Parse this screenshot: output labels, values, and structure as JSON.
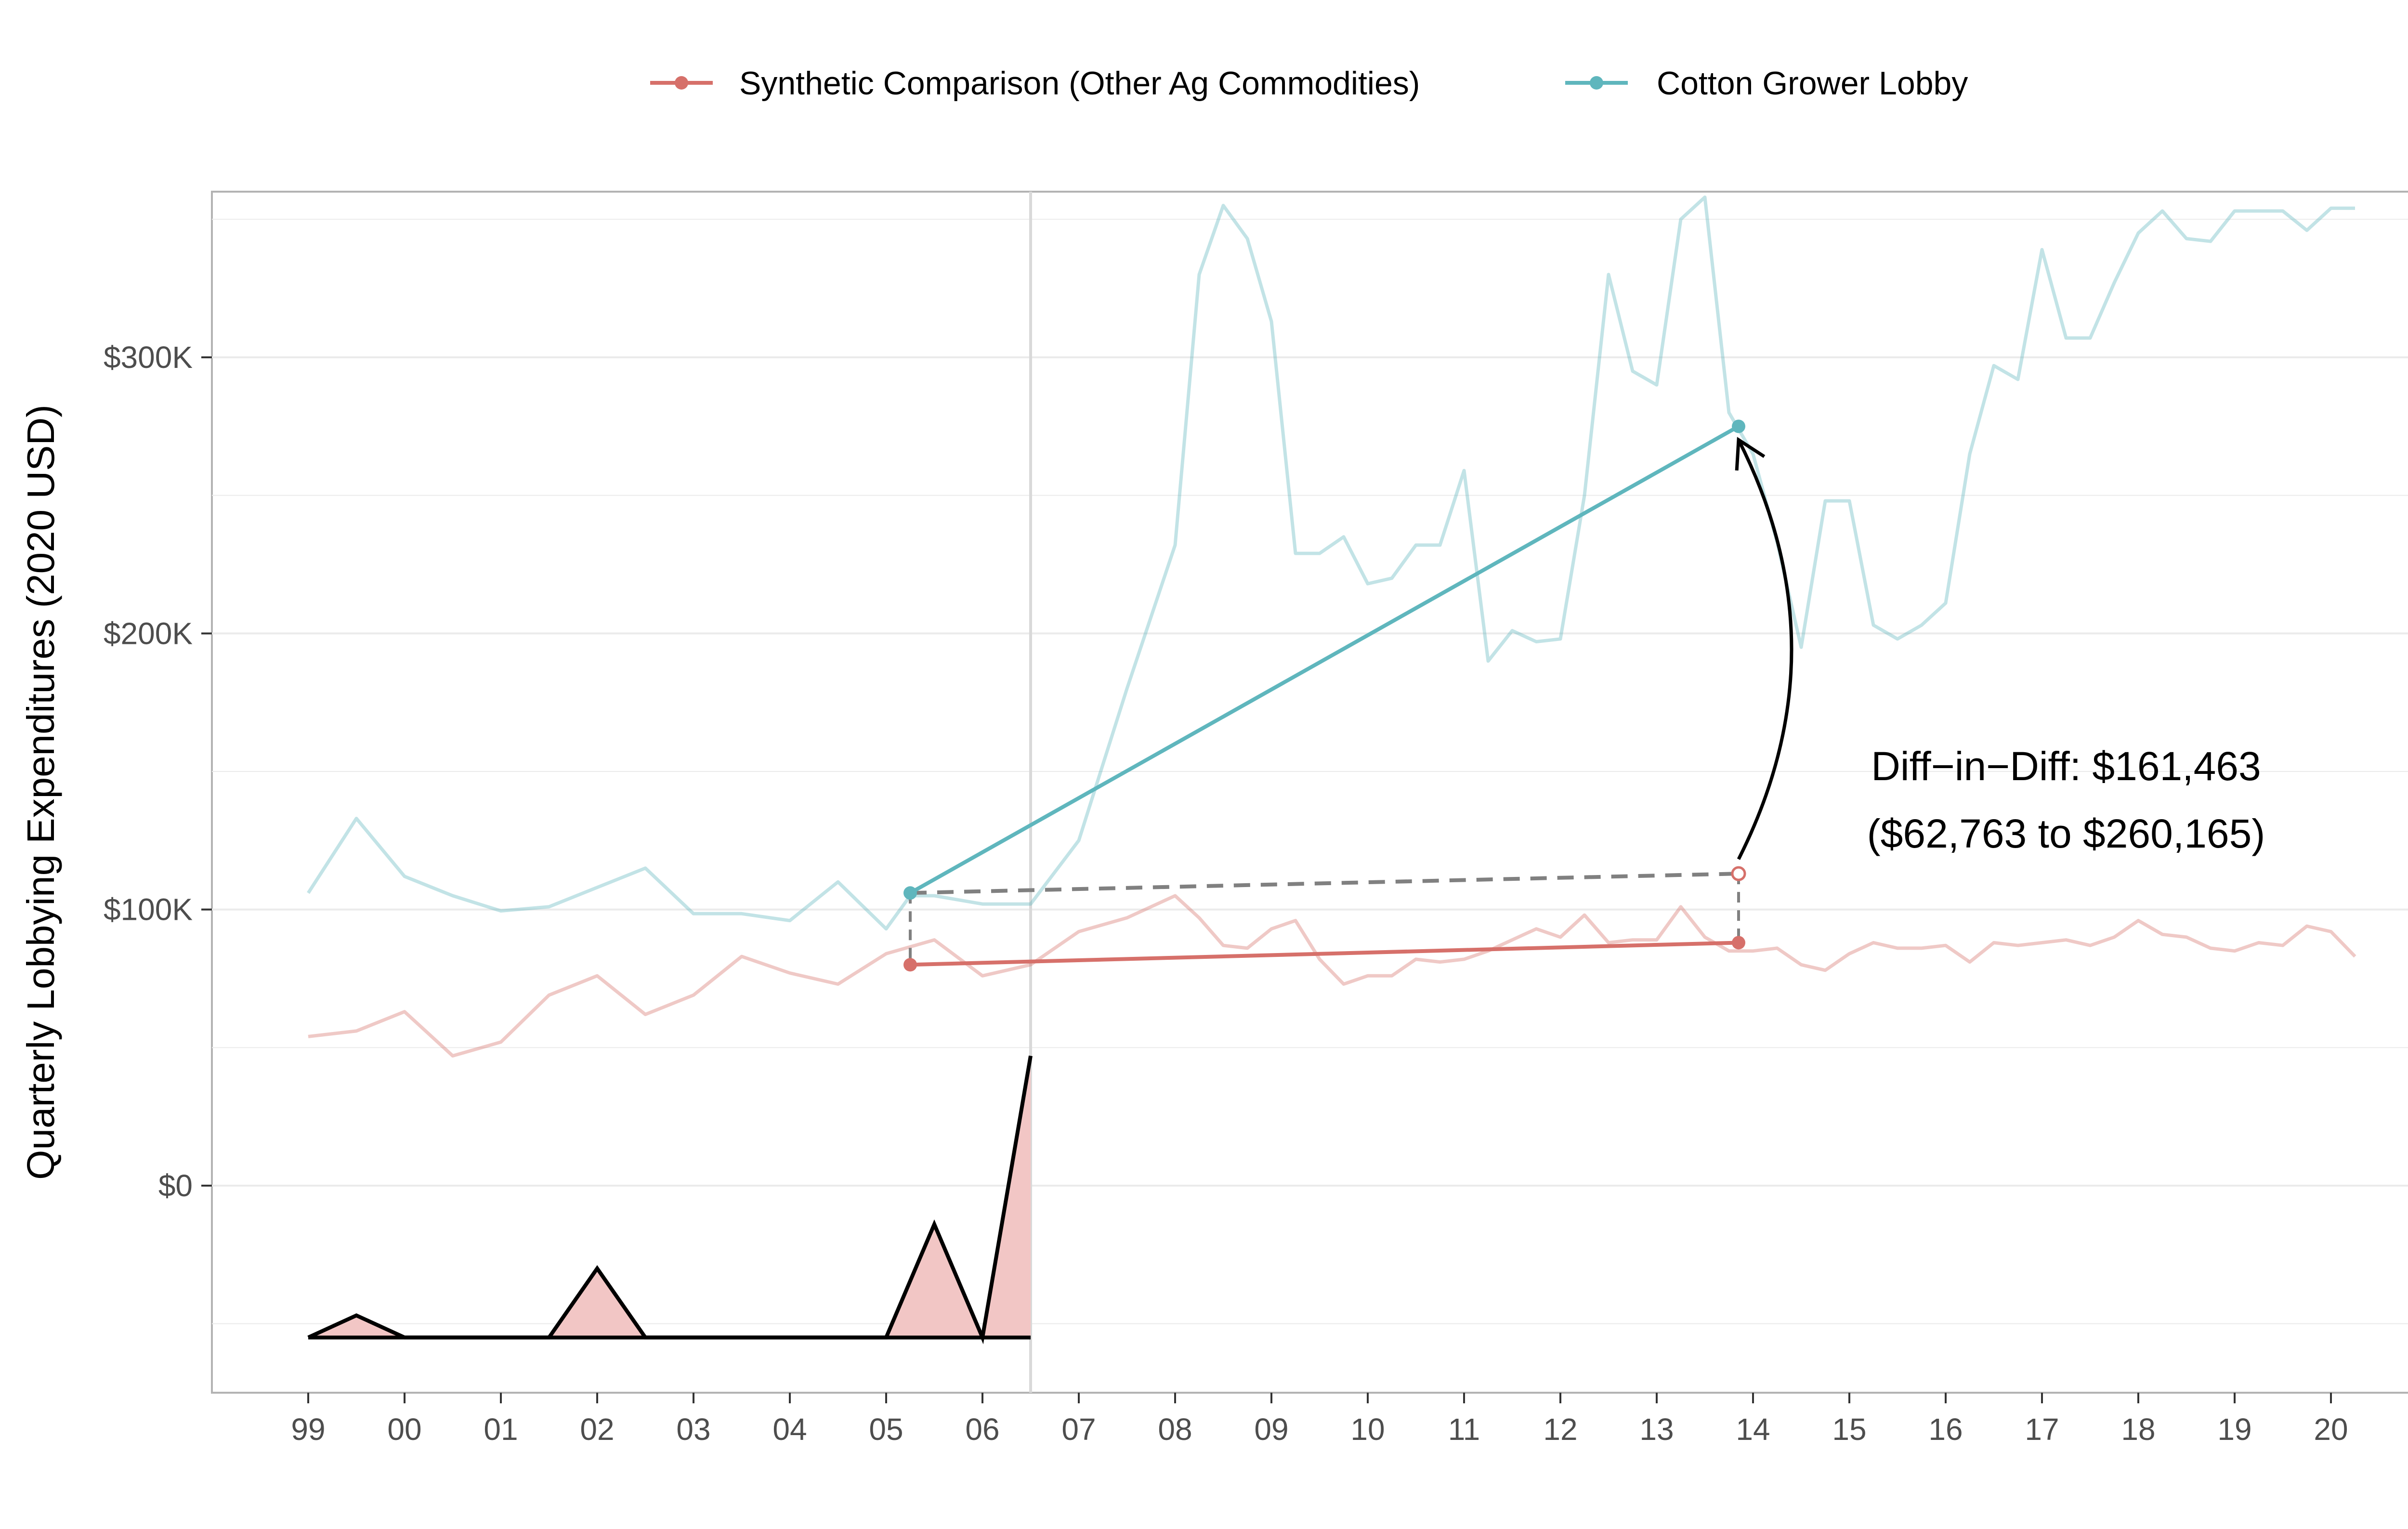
{
  "chart_data": {
    "type": "line",
    "title": "",
    "xlabel": "",
    "ylabel": "Quarterly Lobbying Expenditures (2020 USD)",
    "x_tick_labels": [
      "99",
      "00",
      "01",
      "02",
      "03",
      "04",
      "05",
      "06",
      "07",
      "08",
      "09",
      "10",
      "11",
      "12",
      "13",
      "14",
      "15",
      "16",
      "17",
      "18",
      "19",
      "20"
    ],
    "x_ticks": [
      1999,
      2000,
      2001,
      2002,
      2003,
      2004,
      2005,
      2006,
      2007,
      2008,
      2009,
      2010,
      2011,
      2012,
      2013,
      2014,
      2015,
      2016,
      2017,
      2018,
      2019,
      2020
    ],
    "xlim": [
      1998,
      2021
    ],
    "y_tick_labels": [
      "$0",
      "$100K",
      "$200K",
      "$300K"
    ],
    "y_ticks": [
      0,
      100000,
      200000,
      300000
    ],
    "ylim": [
      -75000,
      360000
    ],
    "grid": true,
    "treatment_year": 2006.5,
    "legend": {
      "position": "top",
      "entries": [
        {
          "label": "Synthetic Comparison (Other Ag Commodities)",
          "color": "#d6706a"
        },
        {
          "label": "Cotton Grower Lobby",
          "color": "#5fb6bd"
        }
      ]
    },
    "series": [
      {
        "name": "Cotton Grower Lobby",
        "color": "#5fb6bd",
        "points": [
          [
            1999.0,
            106000
          ],
          [
            1999.5,
            133000
          ],
          [
            2000.0,
            112000
          ],
          [
            2000.5,
            105000
          ],
          [
            2001.0,
            99500
          ],
          [
            2001.5,
            101000
          ],
          [
            2002.0,
            108000
          ],
          [
            2002.5,
            115000
          ],
          [
            2003.0,
            98500
          ],
          [
            2003.5,
            98500
          ],
          [
            2004.0,
            96000
          ],
          [
            2004.5,
            110000
          ],
          [
            2005.0,
            93000
          ],
          [
            2005.25,
            105000
          ],
          [
            2005.5,
            105000
          ],
          [
            2006.0,
            102000
          ],
          [
            2006.5,
            102000
          ],
          [
            2007.0,
            125000
          ],
          [
            2007.5,
            180000
          ],
          [
            2008.0,
            232000
          ],
          [
            2008.25,
            330000
          ],
          [
            2008.5,
            355000
          ],
          [
            2008.75,
            343000
          ],
          [
            2009.0,
            313000
          ],
          [
            2009.25,
            229000
          ],
          [
            2009.5,
            229000
          ],
          [
            2009.75,
            235000
          ],
          [
            2010.0,
            218000
          ],
          [
            2010.25,
            220000
          ],
          [
            2010.5,
            232000
          ],
          [
            2010.75,
            232000
          ],
          [
            2011.0,
            259000
          ],
          [
            2011.25,
            190000
          ],
          [
            2011.5,
            201000
          ],
          [
            2011.75,
            197000
          ],
          [
            2012.0,
            198000
          ],
          [
            2012.25,
            250000
          ],
          [
            2012.5,
            330000
          ],
          [
            2012.75,
            295000
          ],
          [
            2013.0,
            290000
          ],
          [
            2013.25,
            350000
          ],
          [
            2013.5,
            358000
          ],
          [
            2013.75,
            280000
          ],
          [
            2014.0,
            265000
          ],
          [
            2014.25,
            233000
          ],
          [
            2014.5,
            195000
          ],
          [
            2014.75,
            248000
          ],
          [
            2015.0,
            248000
          ],
          [
            2015.25,
            203000
          ],
          [
            2015.5,
            198000
          ],
          [
            2015.75,
            203000
          ],
          [
            2016.0,
            211000
          ],
          [
            2016.25,
            265000
          ],
          [
            2016.5,
            297000
          ],
          [
            2016.75,
            292000
          ],
          [
            2017.0,
            339000
          ],
          [
            2017.25,
            307000
          ],
          [
            2017.5,
            307000
          ],
          [
            2017.75,
            327000
          ],
          [
            2018.0,
            345000
          ],
          [
            2018.25,
            353000
          ],
          [
            2018.5,
            343000
          ],
          [
            2018.75,
            342000
          ],
          [
            2019.0,
            353000
          ],
          [
            2019.25,
            353000
          ],
          [
            2019.5,
            353000
          ],
          [
            2019.75,
            346000
          ],
          [
            2020.0,
            354000
          ],
          [
            2020.25,
            354000
          ]
        ]
      },
      {
        "name": "Synthetic Comparison (Other Ag Commodities)",
        "color": "#d6706a",
        "points": [
          [
            1999.0,
            54000
          ],
          [
            1999.5,
            56000
          ],
          [
            2000.0,
            63000
          ],
          [
            2000.5,
            47000
          ],
          [
            2001.0,
            52000
          ],
          [
            2001.5,
            69000
          ],
          [
            2002.0,
            76000
          ],
          [
            2002.5,
            62000
          ],
          [
            2003.0,
            69000
          ],
          [
            2003.5,
            83000
          ],
          [
            2004.0,
            77000
          ],
          [
            2004.5,
            73000
          ],
          [
            2005.0,
            84000
          ],
          [
            2005.5,
            89000
          ],
          [
            2006.0,
            76000
          ],
          [
            2006.5,
            80000
          ],
          [
            2007.0,
            92000
          ],
          [
            2007.5,
            97000
          ],
          [
            2008.0,
            105000
          ],
          [
            2008.25,
            97000
          ],
          [
            2008.5,
            87000
          ],
          [
            2008.75,
            86000
          ],
          [
            2009.0,
            93000
          ],
          [
            2009.25,
            96000
          ],
          [
            2009.5,
            82000
          ],
          [
            2009.75,
            73000
          ],
          [
            2010.0,
            76000
          ],
          [
            2010.25,
            76000
          ],
          [
            2010.5,
            82000
          ],
          [
            2010.75,
            81000
          ],
          [
            2011.0,
            82000
          ],
          [
            2011.25,
            85000
          ],
          [
            2011.5,
            89000
          ],
          [
            2011.75,
            93000
          ],
          [
            2012.0,
            90000
          ],
          [
            2012.25,
            98000
          ],
          [
            2012.5,
            88000
          ],
          [
            2012.75,
            89000
          ],
          [
            2013.0,
            89000
          ],
          [
            2013.25,
            101000
          ],
          [
            2013.5,
            90000
          ],
          [
            2013.75,
            85000
          ],
          [
            2014.0,
            85000
          ],
          [
            2014.25,
            86000
          ],
          [
            2014.5,
            80000
          ],
          [
            2014.75,
            78000
          ],
          [
            2015.0,
            84000
          ],
          [
            2015.25,
            88000
          ],
          [
            2015.5,
            86000
          ],
          [
            2015.75,
            86000
          ],
          [
            2016.0,
            87000
          ],
          [
            2016.25,
            81000
          ],
          [
            2016.5,
            88000
          ],
          [
            2016.75,
            87000
          ],
          [
            2017.0,
            88000
          ],
          [
            2017.25,
            89000
          ],
          [
            2017.5,
            87000
          ],
          [
            2017.75,
            90000
          ],
          [
            2018.0,
            96000
          ],
          [
            2018.25,
            91000
          ],
          [
            2018.5,
            90000
          ],
          [
            2018.75,
            86000
          ],
          [
            2019.0,
            85000
          ],
          [
            2019.25,
            88000
          ],
          [
            2019.5,
            87000
          ],
          [
            2019.75,
            94000
          ],
          [
            2020.0,
            92000
          ],
          [
            2020.25,
            83000
          ]
        ]
      }
    ],
    "gap_series": {
      "baseline": -55000,
      "fill_color": "#f2c6c5",
      "points": [
        [
          1999.0,
          -55000
        ],
        [
          1999.5,
          -47000
        ],
        [
          2000.0,
          -55000
        ],
        [
          2001.5,
          -55000
        ],
        [
          2002.0,
          -30000
        ],
        [
          2002.5,
          -55000
        ],
        [
          2005.0,
          -55000
        ],
        [
          2005.5,
          -14000
        ],
        [
          2006.0,
          -55000
        ],
        [
          2006.5,
          47000
        ]
      ]
    },
    "did_segments": {
      "pre_x": 2005.25,
      "post_x": 2013.85,
      "cotton": {
        "pre": 106000,
        "post": 275000,
        "color": "#5fb6bd"
      },
      "synthetic": {
        "pre": 80000,
        "post": 88000,
        "color": "#d6706a"
      },
      "counterfactual": {
        "pre": 106000,
        "post": 113000,
        "color": "#808080"
      }
    },
    "annotation": {
      "line1": "Diff−in−Diff: $161,463",
      "line2": "($62,763 to $260,165)",
      "position": "right-middle"
    }
  }
}
